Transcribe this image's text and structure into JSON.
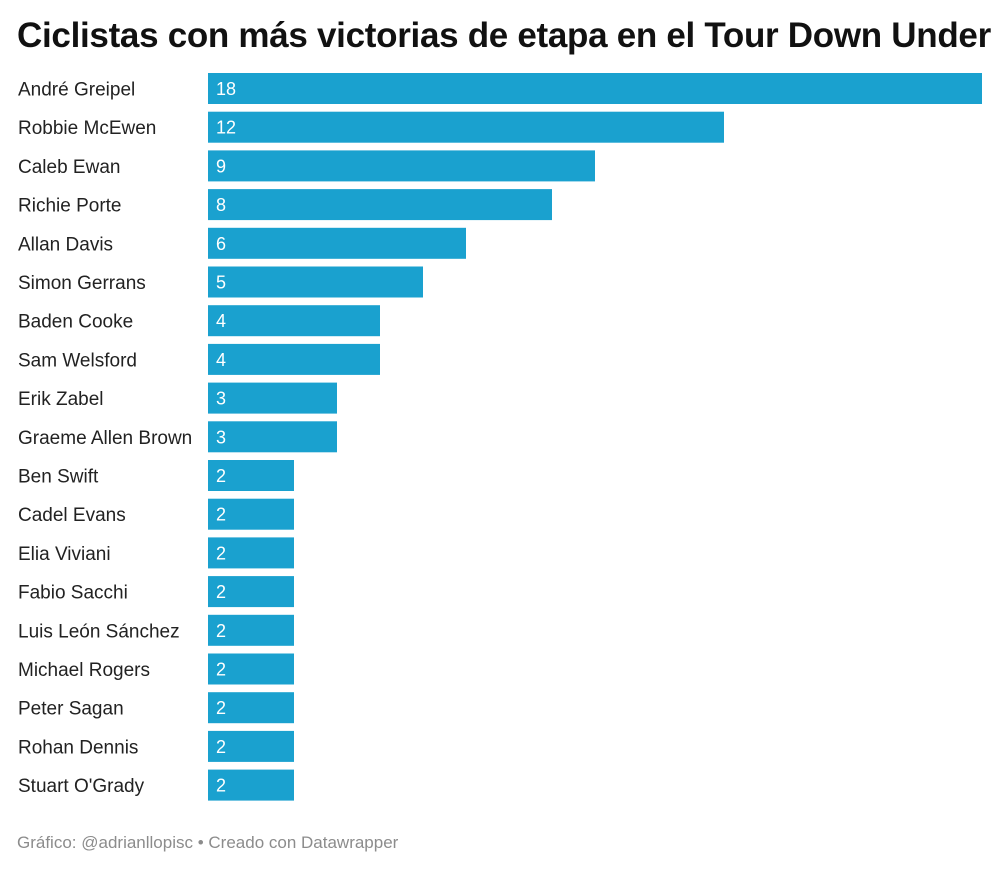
{
  "header": {
    "title": "Ciclistas con más victorias de etapa en el Tour Down Under"
  },
  "footer": {
    "credit": "Gráfico: @adrianllopisc • Creado con Datawrapper"
  },
  "colors": {
    "bar": "#1aa1cf",
    "value_text": "#ffffff",
    "label_text": "#222222"
  },
  "chart_data": {
    "type": "bar",
    "orientation": "horizontal",
    "title": "Ciclistas con más victorias de etapa en el Tour Down Under",
    "xlabel": "",
    "ylabel": "",
    "xlim": [
      0,
      18
    ],
    "grid": false,
    "legend": "none",
    "categories": [
      "André Greipel",
      "Robbie McEwen",
      "Caleb Ewan",
      "Richie Porte",
      "Allan Davis",
      "Simon Gerrans",
      "Baden Cooke",
      "Sam Welsford",
      "Erik Zabel",
      "Graeme Allen Brown",
      "Ben Swift",
      "Cadel Evans",
      "Elia Viviani",
      "Fabio Sacchi",
      "Luis León Sánchez",
      "Michael Rogers",
      "Peter Sagan",
      "Rohan Dennis",
      "Stuart O'Grady"
    ],
    "values": [
      18,
      12,
      9,
      8,
      6,
      5,
      4,
      4,
      3,
      3,
      2,
      2,
      2,
      2,
      2,
      2,
      2,
      2,
      2
    ]
  }
}
